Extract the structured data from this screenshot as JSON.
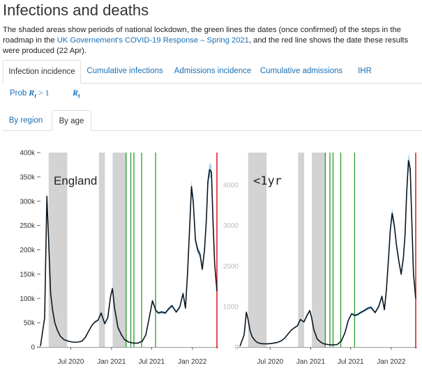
{
  "page": {
    "title": "Infections and deaths",
    "desc_part1": "The shaded areas show periods of national lockdown, the green lines the dates (once confirmed) of the steps in the roadmap in the ",
    "desc_link": "UK Governement's COVID-19 Response – Spring 2021",
    "desc_part2": ", and the red line shows the date these results were produced (22 Apr)."
  },
  "tabs": [
    {
      "label": "Infection incidence",
      "active": true
    },
    {
      "label": "Cumulative infections",
      "active": false
    },
    {
      "label": "Admissions incidence",
      "active": false
    },
    {
      "label": "Cumulative admissions",
      "active": false
    },
    {
      "label": "IHR",
      "active": false
    }
  ],
  "subtabs": {
    "prob_prefix": "Prob",
    "prob_expr": "R",
    "prob_sub": "t",
    "prob_suffix": " > 1",
    "rt": "R",
    "rt_sub": "t"
  },
  "view_tabs": [
    {
      "label": "By region",
      "active": false
    },
    {
      "label": "By age",
      "active": true
    }
  ],
  "colors": {
    "line": "#0a1620",
    "ci": "#a9d4ee",
    "lockdown": "#d3d3d3",
    "roadmap": "#2b9a2b",
    "today": "#e0202a",
    "link": "#1a6fb3"
  },
  "chart_data": [
    {
      "type": "line",
      "label": "England",
      "y_ticks": [
        "0",
        "50k",
        "100k",
        "150k",
        "200k",
        "250k",
        "300k",
        "350k",
        "400k"
      ],
      "ylim": [
        0,
        400000
      ],
      "x_ticks": [
        "Jul 2020",
        "Jan 2021",
        "Jul 2021",
        "Jan 2022"
      ],
      "lockdowns": [
        [
          "2020-03-23",
          "2020-06-15"
        ],
        [
          "2020-11-05",
          "2020-12-02"
        ],
        [
          "2021-01-06",
          "2021-03-08"
        ]
      ],
      "roadmap": [
        "2021-03-08",
        "2021-03-29",
        "2021-04-12",
        "2021-05-17",
        "2021-07-19"
      ],
      "today": "2022-04-22",
      "series": [
        {
          "x": [
            "2020-02-15",
            "2020-03-05",
            "2020-03-15",
            "2020-03-22",
            "2020-04-01",
            "2020-04-10",
            "2020-04-20",
            "2020-05-01",
            "2020-05-15",
            "2020-06-01",
            "2020-06-20",
            "2020-07-10",
            "2020-08-01",
            "2020-08-20",
            "2020-09-05",
            "2020-09-20",
            "2020-10-05",
            "2020-10-20",
            "2020-11-01",
            "2020-11-15",
            "2020-12-01",
            "2020-12-15",
            "2020-12-28",
            "2021-01-05",
            "2021-01-15",
            "2021-01-30",
            "2021-02-15",
            "2021-03-01",
            "2021-03-20",
            "2021-04-10",
            "2021-05-01",
            "2021-05-20",
            "2021-06-05",
            "2021-06-20",
            "2021-07-05",
            "2021-07-20",
            "2021-08-01",
            "2021-08-15",
            "2021-09-01",
            "2021-09-15",
            "2021-10-01",
            "2021-10-20",
            "2021-11-05",
            "2021-11-20",
            "2021-12-01",
            "2021-12-10",
            "2021-12-20",
            "2021-12-28",
            "2022-01-05",
            "2022-01-15",
            "2022-01-25",
            "2022-02-05",
            "2022-02-15",
            "2022-02-25",
            "2022-03-05",
            "2022-03-12",
            "2022-03-20",
            "2022-03-28",
            "2022-04-05",
            "2022-04-12",
            "2022-04-22"
          ],
          "values": [
            2000,
            60000,
            310000,
            230000,
            110000,
            75000,
            50000,
            35000,
            22000,
            15000,
            12000,
            10000,
            10000,
            12000,
            20000,
            33000,
            45000,
            52000,
            55000,
            70000,
            48000,
            60000,
            105000,
            120000,
            80000,
            40000,
            25000,
            15000,
            10000,
            8000,
            8000,
            12000,
            25000,
            60000,
            95000,
            75000,
            70000,
            72000,
            70000,
            78000,
            85000,
            72000,
            82000,
            110000,
            80000,
            150000,
            250000,
            330000,
            300000,
            220000,
            200000,
            190000,
            160000,
            200000,
            260000,
            340000,
            365000,
            360000,
            250000,
            170000,
            115000
          ]
        }
      ]
    },
    {
      "type": "line",
      "label": "<1yr",
      "y_ticks": [
        "0",
        "1000",
        "2000",
        "3000",
        "4000"
      ],
      "ylim": [
        0,
        4800
      ],
      "x_ticks": [
        "Jul 2020",
        "Jan 2021",
        "Jul 2021",
        "Jan 2022"
      ],
      "lockdowns": [
        [
          "2020-03-23",
          "2020-06-15"
        ],
        [
          "2020-11-05",
          "2020-12-02"
        ],
        [
          "2021-01-06",
          "2021-03-08"
        ]
      ],
      "roadmap": [
        "2021-03-08",
        "2021-03-29",
        "2021-04-12",
        "2021-05-17",
        "2021-07-19"
      ],
      "today": "2022-04-22",
      "series": [
        {
          "x": [
            "2020-02-15",
            "2020-03-05",
            "2020-03-15",
            "2020-03-22",
            "2020-04-01",
            "2020-04-10",
            "2020-04-20",
            "2020-05-01",
            "2020-05-15",
            "2020-06-01",
            "2020-06-20",
            "2020-07-10",
            "2020-08-01",
            "2020-08-20",
            "2020-09-05",
            "2020-09-20",
            "2020-10-05",
            "2020-10-20",
            "2020-11-01",
            "2020-11-15",
            "2020-12-01",
            "2020-12-15",
            "2020-12-28",
            "2021-01-05",
            "2021-01-15",
            "2021-01-30",
            "2021-02-15",
            "2021-03-01",
            "2021-03-20",
            "2021-04-10",
            "2021-05-01",
            "2021-05-20",
            "2021-06-05",
            "2021-06-20",
            "2021-07-05",
            "2021-07-20",
            "2021-08-01",
            "2021-08-15",
            "2021-09-01",
            "2021-09-15",
            "2021-10-01",
            "2021-10-20",
            "2021-11-05",
            "2021-11-20",
            "2021-12-01",
            "2021-12-10",
            "2021-12-20",
            "2021-12-28",
            "2022-01-05",
            "2022-01-15",
            "2022-01-25",
            "2022-02-05",
            "2022-02-15",
            "2022-02-25",
            "2022-03-05",
            "2022-03-12",
            "2022-03-20",
            "2022-03-28",
            "2022-04-05",
            "2022-04-12",
            "2022-04-22"
          ],
          "values": [
            20,
            300,
            860,
            700,
            400,
            260,
            180,
            120,
            90,
            80,
            80,
            90,
            110,
            150,
            220,
            320,
            420,
            480,
            520,
            680,
            620,
            780,
            900,
            720,
            430,
            200,
            120,
            80,
            60,
            50,
            60,
            150,
            350,
            650,
            820,
            780,
            800,
            850,
            900,
            950,
            980,
            850,
            1000,
            1250,
            920,
            1400,
            2200,
            2900,
            3300,
            3000,
            2500,
            2100,
            1800,
            2200,
            2800,
            3800,
            4600,
            4400,
            3000,
            1800,
            1200
          ]
        }
      ]
    }
  ]
}
